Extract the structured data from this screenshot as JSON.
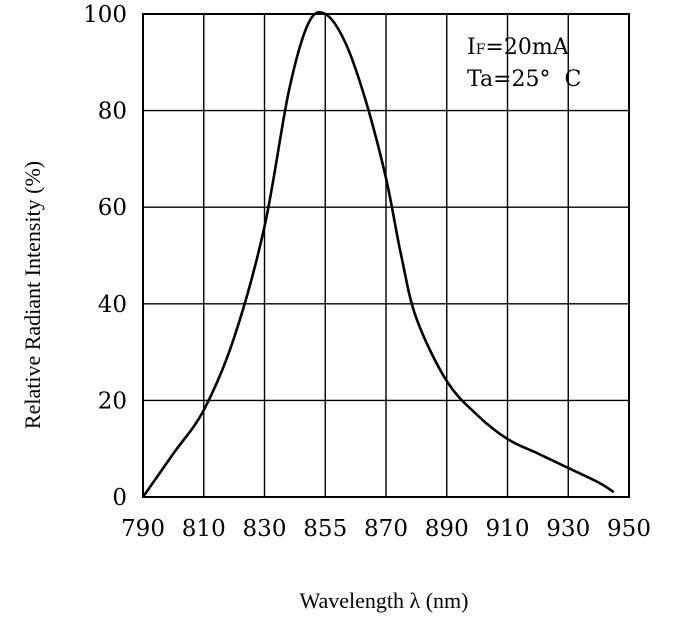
{
  "chart_data": {
    "type": "line",
    "title": "",
    "xlabel": "Wavelength λ (nm)",
    "ylabel": "Relative Radiant Intensity (%)",
    "x_tick_labels": [
      "790",
      "810",
      "830",
      "855",
      "870",
      "890",
      "910",
      "930",
      "950"
    ],
    "y_tick_labels": [
      "0",
      "20",
      "40",
      "60",
      "80",
      "100"
    ],
    "y_ticks": [
      0,
      20,
      40,
      60,
      80,
      100
    ],
    "ylim": [
      0,
      100
    ],
    "x_axis_note": "tick labels are evenly spaced on the grid (non-linear wavelength scale)",
    "grid": true,
    "annotations": [
      "IF=20mA",
      "Ta=25°  C"
    ],
    "series": [
      {
        "x": [
          790,
          800,
          810,
          820,
          830,
          840,
          848,
          855,
          860,
          865,
          870,
          875,
          880,
          890,
          900,
          910,
          920,
          930,
          940,
          945
        ],
        "y": [
          0,
          9,
          18,
          33,
          56,
          84,
          98,
          100,
          94,
          82,
          66,
          50,
          37,
          24,
          17,
          12,
          9,
          6,
          3,
          1
        ]
      }
    ],
    "colors": {
      "line": "#000000",
      "grid": "#000000",
      "background": "#ffffff"
    }
  }
}
